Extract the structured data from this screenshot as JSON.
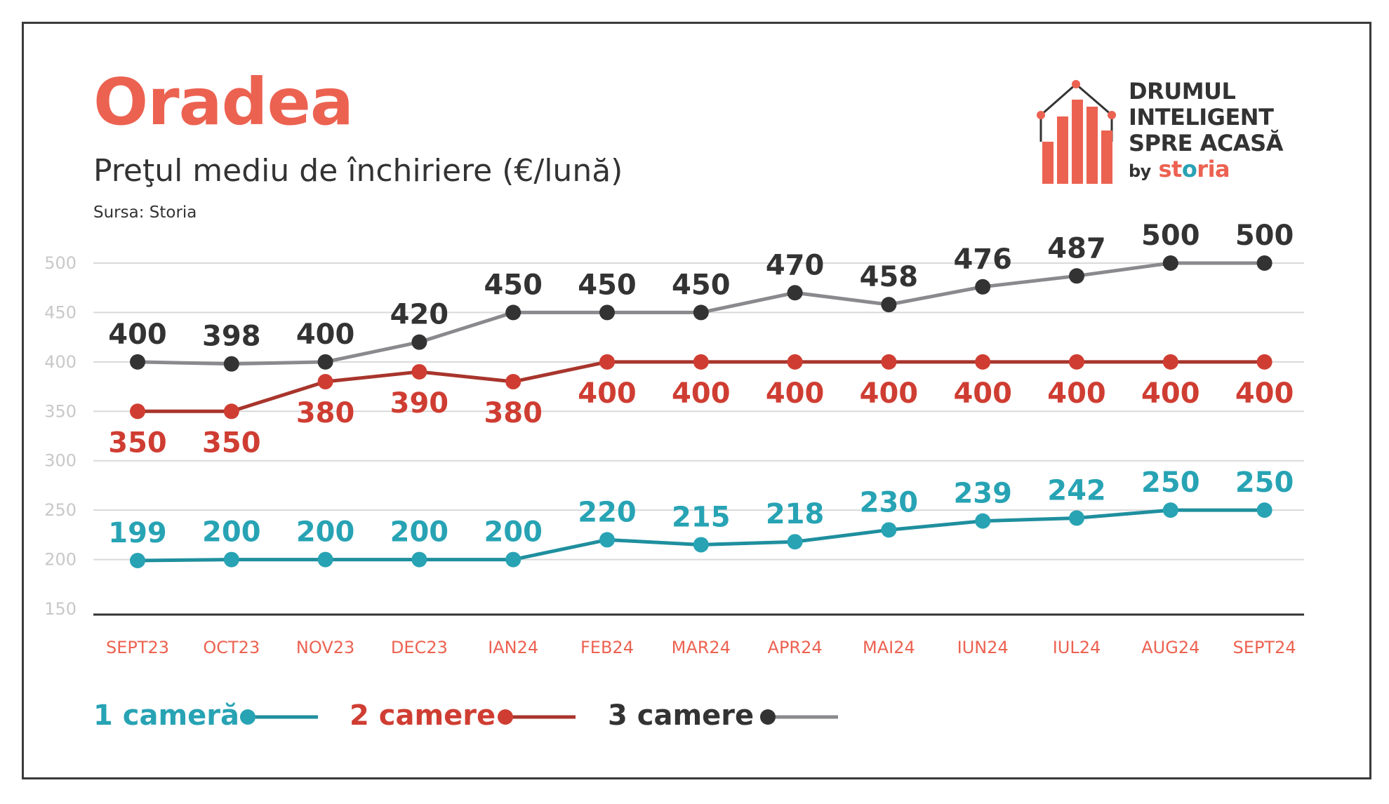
{
  "header": {
    "city": "Oradea",
    "subtitle": "Preţul mediu de închiriere (€/lună)",
    "source": "Sursa: Storia"
  },
  "brand": {
    "line1": "DRUMUL",
    "line2": "INTELIGENT",
    "line3": "SPRE ACASĂ",
    "by": "by",
    "storia_prefix": "st",
    "storia_o": "o",
    "storia_suffix": "ria",
    "logo_icon": "house-bar-chart-icon",
    "color": "#ec6251"
  },
  "chart_data": {
    "type": "line",
    "categories": [
      "SEPT23",
      "OCT23",
      "NOV23",
      "DEC23",
      "IAN24",
      "FEB24",
      "MAR24",
      "APR24",
      "MAI24",
      "IUN24",
      "IUL24",
      "AUG24",
      "SEPT24"
    ],
    "yticks": [
      150,
      200,
      250,
      300,
      350,
      400,
      450,
      500
    ],
    "ylim": [
      150,
      500
    ],
    "grid": true,
    "legend_position": "bottom-left",
    "series": [
      {
        "name": "1 cameră",
        "values": [
          199,
          200,
          200,
          200,
          200,
          220,
          215,
          218,
          230,
          239,
          242,
          250,
          250
        ],
        "line_color": "#1f8f9e",
        "marker_color": "#27a3b4",
        "label_color": "#27a3b4",
        "label_position": "above"
      },
      {
        "name": "2 camere",
        "values": [
          350,
          350,
          380,
          390,
          380,
          400,
          400,
          400,
          400,
          400,
          400,
          400,
          400
        ],
        "line_color": "#a8352c",
        "marker_color": "#cf3d32",
        "label_color": "#cf3d32",
        "label_position": "below"
      },
      {
        "name": "3 camere",
        "values": [
          400,
          398,
          400,
          420,
          450,
          450,
          450,
          470,
          458,
          476,
          487,
          500,
          500
        ],
        "line_color": "#8a8a8e",
        "marker_color": "#333333",
        "label_color": "#333333",
        "label_position": "above"
      }
    ]
  }
}
